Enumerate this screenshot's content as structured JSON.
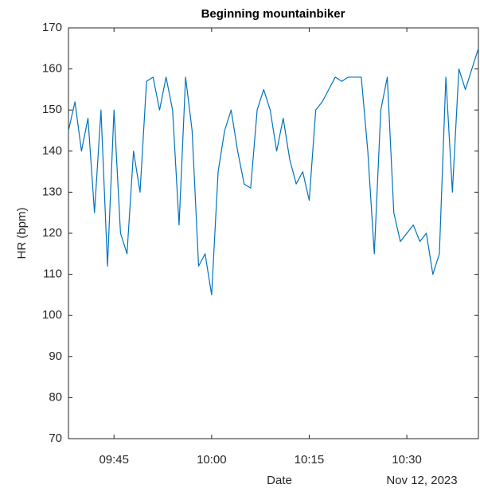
{
  "chart_data": {
    "type": "line",
    "title": "Beginning mountainbiker",
    "xlabel": "Date",
    "ylabel": "HR (bpm)",
    "x_date_label": "Nov 12, 2023",
    "x": [
      "09:38",
      "09:39",
      "09:40",
      "09:41",
      "09:42",
      "09:43",
      "09:44",
      "09:45",
      "09:46",
      "09:47",
      "09:48",
      "09:49",
      "09:50",
      "09:51",
      "09:52",
      "09:53",
      "09:54",
      "09:55",
      "09:56",
      "09:57",
      "09:58",
      "09:59",
      "10:00",
      "10:01",
      "10:02",
      "10:03",
      "10:04",
      "10:05",
      "10:06",
      "10:07",
      "10:08",
      "10:09",
      "10:10",
      "10:11",
      "10:12",
      "10:13",
      "10:14",
      "10:15",
      "10:16",
      "10:17",
      "10:18",
      "10:19",
      "10:20",
      "10:21",
      "10:22",
      "10:23",
      "10:24",
      "10:25",
      "10:26",
      "10:27",
      "10:28",
      "10:29",
      "10:30",
      "10:31",
      "10:32",
      "10:33",
      "10:34",
      "10:35",
      "10:36",
      "10:37",
      "10:38",
      "10:39",
      "10:40",
      "10:41"
    ],
    "series": [
      {
        "name": "HR",
        "color": "#0072bd",
        "values": [
          145,
          152,
          140,
          148,
          125,
          150,
          112,
          150,
          120,
          115,
          140,
          130,
          157,
          158,
          150,
          158,
          150,
          122,
          158,
          145,
          112,
          115,
          105,
          135,
          145,
          150,
          140,
          132,
          131,
          150,
          155,
          150,
          140,
          148,
          138,
          132,
          135,
          128,
          150,
          152,
          155,
          158,
          157,
          158,
          158,
          158,
          140,
          115,
          150,
          158,
          125,
          118,
          120,
          122,
          118,
          120,
          110,
          115,
          158,
          130,
          160,
          155,
          160,
          165
        ]
      }
    ],
    "xlim": [
      "09:38",
      "10:41"
    ],
    "xticks": [
      "09:45",
      "10:00",
      "10:15",
      "10:30"
    ],
    "ylim": [
      70,
      170
    ],
    "yticks": [
      70,
      80,
      90,
      100,
      110,
      120,
      130,
      140,
      150,
      160,
      170
    ],
    "grid": false
  }
}
